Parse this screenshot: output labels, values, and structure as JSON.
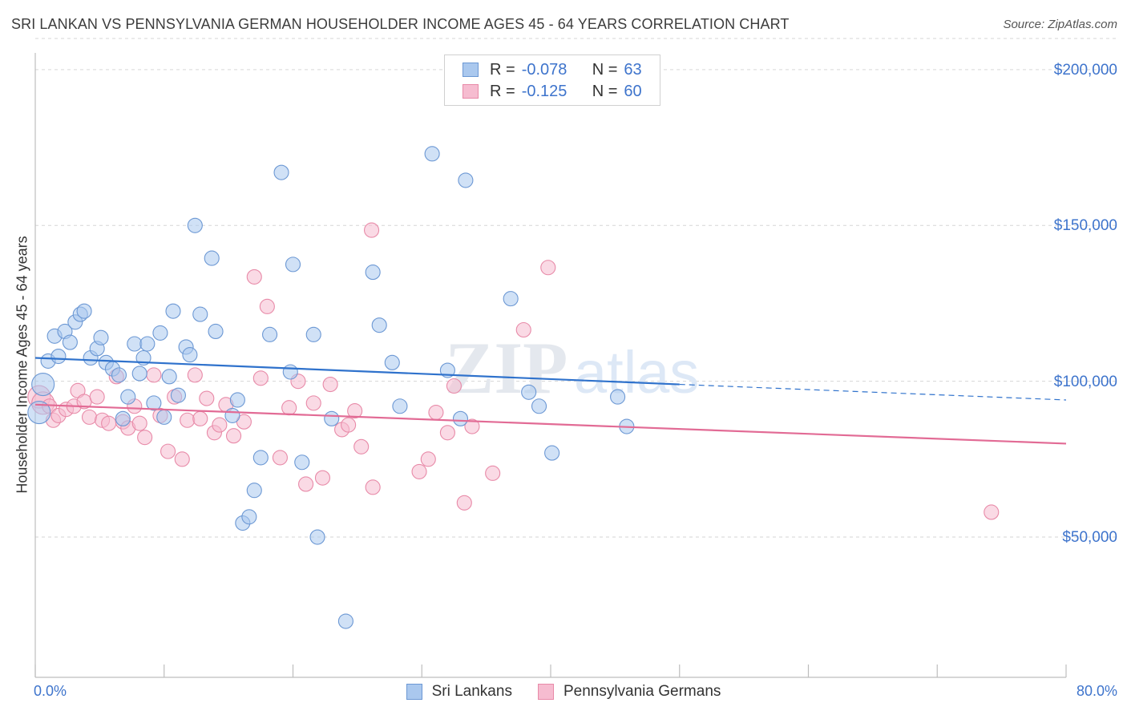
{
  "title": "SRI LANKAN VS PENNSYLVANIA GERMAN HOUSEHOLDER INCOME AGES 45 - 64 YEARS CORRELATION CHART",
  "source": "Source: ZipAtlas.com",
  "watermark": {
    "zip": "ZIP",
    "atlas": "atlas"
  },
  "legend": {
    "rows": [
      {
        "r_label": "R =",
        "r_value": "-0.078",
        "n_label": "N =",
        "n_value": "63"
      },
      {
        "r_label": "R =",
        "r_value": "-0.125",
        "n_label": "N =",
        "n_value": "60"
      }
    ]
  },
  "chart_data": {
    "type": "scatter",
    "ylabel": "Householder Income Ages 45 - 64 years",
    "xlim": [
      0,
      80
    ],
    "ylim": [
      5000,
      210000
    ],
    "x_tick_labels": {
      "min": "0.0%",
      "max": "80.0%"
    },
    "y_ticks": [
      {
        "value": 50000,
        "label": "$50,000"
      },
      {
        "value": 100000,
        "label": "$100,000"
      },
      {
        "value": 150000,
        "label": "$150,000"
      },
      {
        "value": 200000,
        "label": "$200,000"
      }
    ],
    "colors": {
      "blue_fill": "#aac8ee",
      "blue_stroke": "#6c98d4",
      "blue_line": "#2f72cc",
      "pink_fill": "#f6bcd0",
      "pink_stroke": "#e88aa8",
      "pink_line": "#e26b95",
      "grid": "#d6d6d6",
      "axis": "#bdbdbd",
      "tick_text": "#3e74cc"
    },
    "series": [
      {
        "name": "Sri Lankans",
        "color": "#aac8ee",
        "trend": {
          "x0": 0,
          "y0": 107500,
          "x1": 50,
          "y1": 99000,
          "dashed_to_x": 80,
          "dashed_to_y": 94000
        },
        "points": [
          [
            0.3,
            90000
          ],
          [
            0.6,
            99000
          ],
          [
            1.0,
            106500
          ],
          [
            1.5,
            114500
          ],
          [
            1.8,
            108000
          ],
          [
            2.3,
            116000
          ],
          [
            2.7,
            112500
          ],
          [
            3.1,
            119000
          ],
          [
            3.5,
            121500
          ],
          [
            3.8,
            122500
          ],
          [
            4.3,
            107500
          ],
          [
            4.8,
            110500
          ],
          [
            5.1,
            114000
          ],
          [
            5.5,
            106000
          ],
          [
            6.0,
            104000
          ],
          [
            6.5,
            102000
          ],
          [
            6.8,
            88000
          ],
          [
            7.2,
            95000
          ],
          [
            7.7,
            112000
          ],
          [
            8.1,
            102500
          ],
          [
            8.4,
            107500
          ],
          [
            8.7,
            112000
          ],
          [
            9.2,
            93000
          ],
          [
            9.7,
            115500
          ],
          [
            10.0,
            88500
          ],
          [
            10.4,
            101500
          ],
          [
            10.7,
            122500
          ],
          [
            11.1,
            95500
          ],
          [
            11.7,
            111000
          ],
          [
            12.0,
            108500
          ],
          [
            12.4,
            150000
          ],
          [
            12.8,
            121500
          ],
          [
            13.7,
            139500
          ],
          [
            14.0,
            116000
          ],
          [
            15.3,
            89000
          ],
          [
            15.7,
            94000
          ],
          [
            16.1,
            54500
          ],
          [
            16.6,
            56500
          ],
          [
            17.0,
            65000
          ],
          [
            17.5,
            75500
          ],
          [
            18.2,
            115000
          ],
          [
            19.1,
            167000
          ],
          [
            19.8,
            103000
          ],
          [
            20.0,
            137500
          ],
          [
            20.7,
            74000
          ],
          [
            21.6,
            115000
          ],
          [
            21.9,
            50000
          ],
          [
            23.0,
            88000
          ],
          [
            24.1,
            23000
          ],
          [
            26.2,
            135000
          ],
          [
            26.7,
            118000
          ],
          [
            27.7,
            106000
          ],
          [
            28.3,
            92000
          ],
          [
            30.8,
            173000
          ],
          [
            32.0,
            103500
          ],
          [
            33.0,
            88000
          ],
          [
            33.4,
            164500
          ],
          [
            36.9,
            126500
          ],
          [
            38.3,
            96500
          ],
          [
            39.1,
            92000
          ],
          [
            40.1,
            77000
          ],
          [
            45.2,
            95000
          ],
          [
            45.9,
            85500
          ]
        ]
      },
      {
        "name": "Pennsylvania Germans",
        "color": "#f6bcd0",
        "trend": {
          "x0": 0,
          "y0": 92500,
          "x1": 80,
          "y1": 80000
        },
        "points": [
          [
            0.3,
            95000
          ],
          [
            0.6,
            93000
          ],
          [
            1.1,
            92000
          ],
          [
            1.4,
            87500
          ],
          [
            1.8,
            89000
          ],
          [
            2.4,
            91000
          ],
          [
            3.0,
            92000
          ],
          [
            3.3,
            97000
          ],
          [
            3.8,
            93500
          ],
          [
            4.2,
            88500
          ],
          [
            4.8,
            95000
          ],
          [
            5.2,
            87500
          ],
          [
            5.7,
            86500
          ],
          [
            6.3,
            101500
          ],
          [
            6.8,
            87000
          ],
          [
            7.2,
            85000
          ],
          [
            7.7,
            92000
          ],
          [
            8.1,
            86500
          ],
          [
            8.5,
            82000
          ],
          [
            9.2,
            102000
          ],
          [
            9.7,
            89000
          ],
          [
            10.3,
            77500
          ],
          [
            10.8,
            95000
          ],
          [
            11.4,
            75000
          ],
          [
            11.8,
            87500
          ],
          [
            12.4,
            102000
          ],
          [
            12.8,
            88000
          ],
          [
            13.3,
            94500
          ],
          [
            13.9,
            83500
          ],
          [
            14.3,
            86000
          ],
          [
            14.8,
            92500
          ],
          [
            15.4,
            82500
          ],
          [
            16.2,
            87000
          ],
          [
            17.0,
            133500
          ],
          [
            17.5,
            101000
          ],
          [
            18.0,
            124000
          ],
          [
            19.0,
            75500
          ],
          [
            19.7,
            91500
          ],
          [
            20.4,
            100000
          ],
          [
            21.0,
            67000
          ],
          [
            21.6,
            93000
          ],
          [
            22.3,
            69000
          ],
          [
            22.9,
            99000
          ],
          [
            23.8,
            84500
          ],
          [
            24.3,
            86000
          ],
          [
            24.8,
            90500
          ],
          [
            25.3,
            79000
          ],
          [
            26.1,
            148500
          ],
          [
            26.2,
            66000
          ],
          [
            29.8,
            71000
          ],
          [
            30.5,
            75000
          ],
          [
            31.1,
            90000
          ],
          [
            32.0,
            83500
          ],
          [
            32.5,
            98500
          ],
          [
            33.3,
            61000
          ],
          [
            33.9,
            85500
          ],
          [
            35.5,
            70500
          ],
          [
            37.9,
            116500
          ],
          [
            39.8,
            136500
          ],
          [
            74.2,
            58000
          ]
        ]
      }
    ]
  }
}
